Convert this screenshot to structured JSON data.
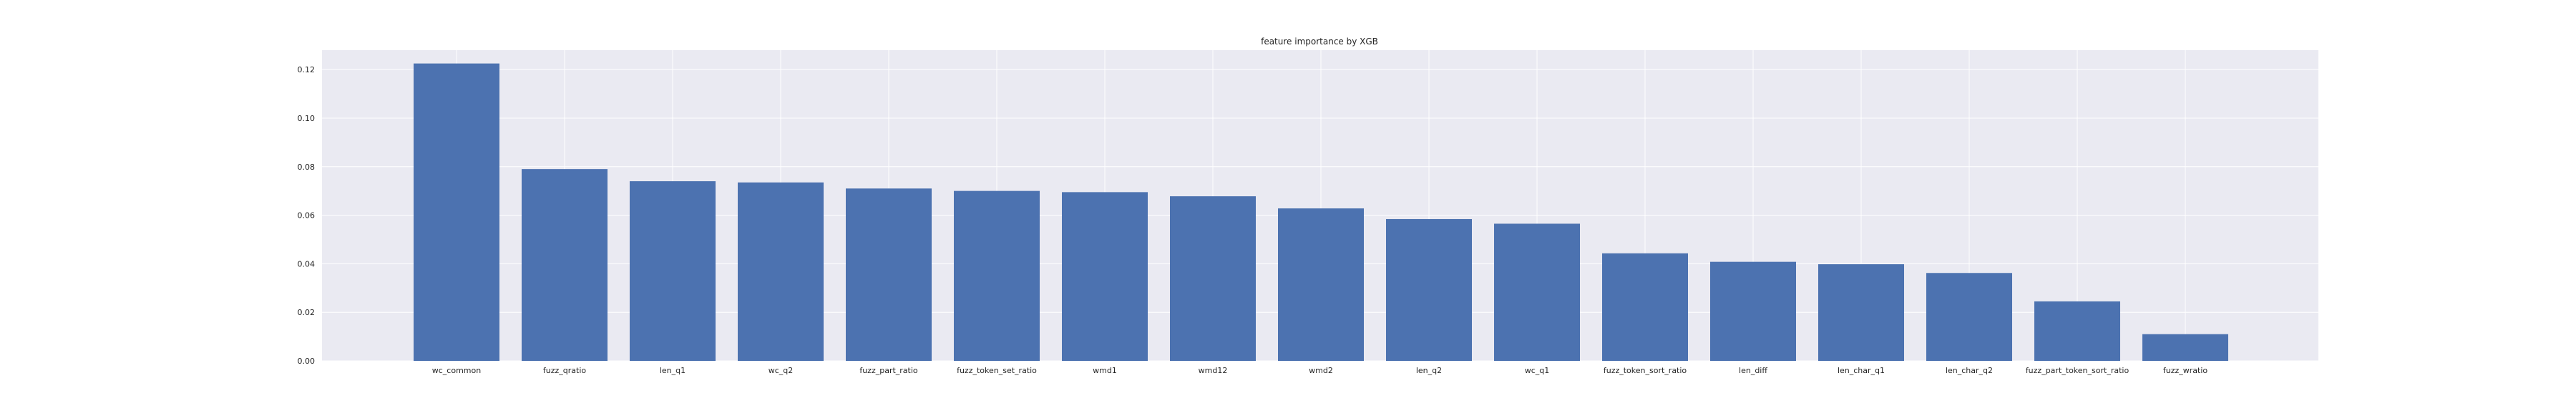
{
  "chart_data": {
    "type": "bar",
    "title": "feature importance by XGB",
    "xlabel": "",
    "ylabel": "",
    "ylim": [
      0,
      0.128
    ],
    "yticks": [
      "0.00",
      "0.02",
      "0.04",
      "0.06",
      "0.08",
      "0.10",
      "0.12"
    ],
    "grid": true,
    "categories": [
      "wc_common",
      "fuzz_qratio",
      "len_q1",
      "wc_q2",
      "fuzz_part_ratio",
      "fuzz_token_set_ratio",
      "wmd1",
      "wmd12",
      "wmd2",
      "len_q2",
      "wc_q1",
      "fuzz_token_sort_ratio",
      "len_diff",
      "len_char_q1",
      "len_char_q2",
      "fuzz_part_token_sort_ratio",
      "fuzz_wratio"
    ],
    "values": [
      0.1225,
      0.079,
      0.074,
      0.0735,
      0.071,
      0.07,
      0.0695,
      0.0678,
      0.0628,
      0.0584,
      0.0565,
      0.0443,
      0.0408,
      0.0398,
      0.0362,
      0.0245,
      0.011
    ],
    "colors": {
      "bar": "#4c72b0",
      "plot_bg": "#eaeaf2",
      "grid": "#ffffff"
    }
  }
}
